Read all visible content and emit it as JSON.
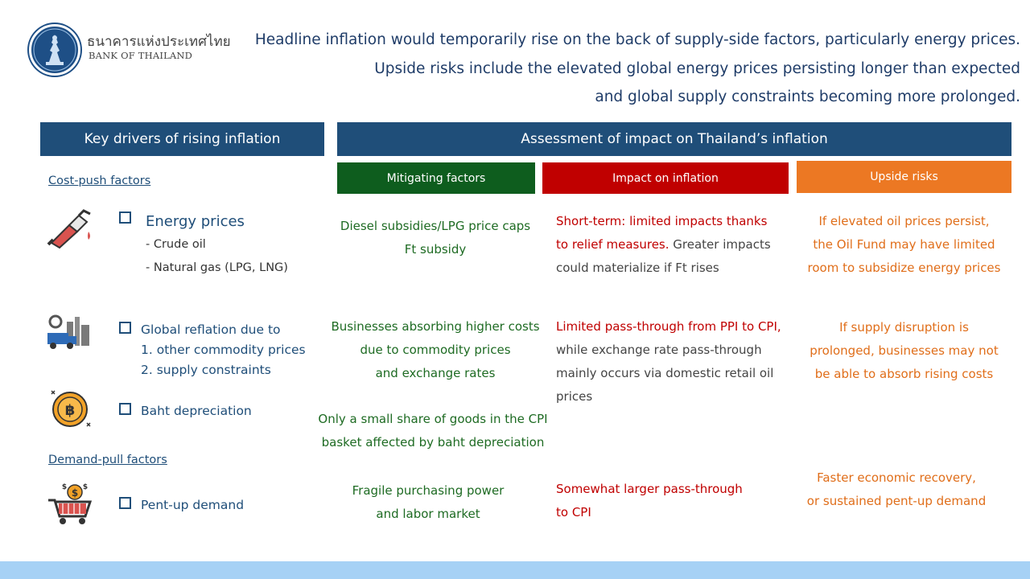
{
  "logo": {
    "thai_name": "ธนาคารแห่งประเทศไทย",
    "english_name": "BANK OF THAILAND"
  },
  "headline": {
    "line1": "Headline inflation would temporarily rise on the back of supply-side factors, particularly energy prices.",
    "line2": "Upside risks include the elevated global energy prices persisting longer than expected",
    "line3": "and global supply constraints becoming more prolonged."
  },
  "headers": {
    "drivers": "Key drivers of rising inflation",
    "assessment": "Assessment of impact on Thailand’s inflation",
    "mitigating": "Mitigating factors",
    "impact": "Impact on inflation",
    "upside": "Upside risks"
  },
  "sections": {
    "cost_push": "Cost-push factors",
    "demand_pull": "Demand-pull factors"
  },
  "drivers": {
    "energy": {
      "title": "Energy prices",
      "sub1": "- Crude oil",
      "sub2": "- Natural gas (LPG, LNG)"
    },
    "reflation": {
      "line1": "Global reflation due to",
      "line2": "1. other commodity prices",
      "line3": "2. supply constraints"
    },
    "baht": {
      "title": "Baht depreciation"
    },
    "pentup": {
      "title": "Pent-up demand"
    }
  },
  "mitigating": {
    "energy": [
      "Diesel subsidies/LPG price caps",
      "Ft subsidy"
    ],
    "reflation": [
      "Businesses absorbing higher costs",
      "due to commodity prices",
      "and exchange rates"
    ],
    "baht": [
      "Only a small share of goods in the CPI",
      "basket affected by baht depreciation"
    ],
    "pentup": [
      "Fragile purchasing power",
      "and labor market"
    ]
  },
  "impact": {
    "energy": {
      "line1": "Short-term: limited impacts thanks",
      "line2_red": "to relief measures.",
      "line2_gray": " Greater impacts",
      "line3": "could materialize if Ft rises"
    },
    "reflation": {
      "line1": "Limited pass-through from PPI to CPI,",
      "line2": "while exchange rate pass-through",
      "line3": "mainly occurs via domestic retail oil",
      "line4": "prices"
    },
    "pentup": [
      "Somewhat larger pass-through",
      "to CPI"
    ]
  },
  "upside": {
    "energy": [
      "If elevated oil prices persist,",
      "the Oil Fund may have limited",
      "room to subsidize energy prices"
    ],
    "reflation": [
      "If supply disruption is",
      "prolonged, businesses may not",
      "be able to absorb rising costs"
    ],
    "pentup": [
      "Faster economic recovery,",
      "or sustained pent-up demand"
    ]
  },
  "icons": {
    "logo": "bank-of-thailand-seal",
    "energy": "fuel-nozzle-icon",
    "reflation": "factory-truck-icon",
    "baht": "baht-coin-icon",
    "pentup": "shopping-cart-money-icon"
  },
  "colors": {
    "navy": "#1f4e79",
    "green": "#0e5d1e",
    "red": "#c00000",
    "orange": "#ec7823",
    "band": "#a6d1f5"
  }
}
